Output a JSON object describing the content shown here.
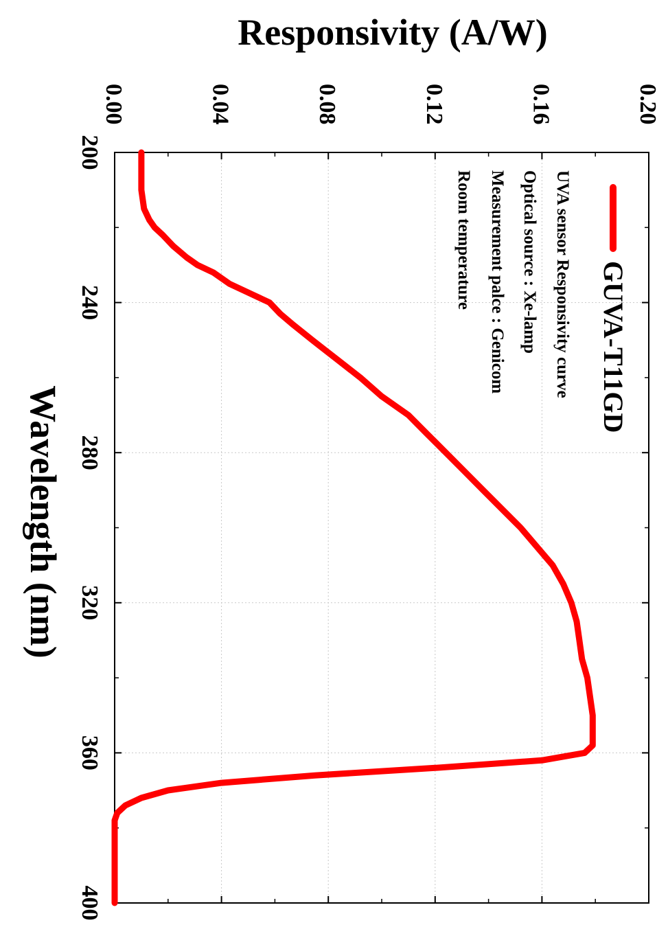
{
  "chart_data": {
    "type": "line",
    "xlabel": "Wavelength (nm)",
    "ylabel": "Responsivity (A/W)",
    "xlim": [
      200,
      400
    ],
    "ylim": [
      0.0,
      0.2
    ],
    "x_ticks": [
      "200",
      "240",
      "280",
      "320",
      "360",
      "400"
    ],
    "y_ticks": [
      "0.00",
      "0.04",
      "0.08",
      "0.12",
      "0.16",
      "0.20"
    ],
    "orientation": "rotated 90° clockwise",
    "grid": true,
    "legend_position": "top-right",
    "series": [
      {
        "name": "GUVA-T11GD",
        "color": "#ff0000",
        "x": [
          200,
          205,
          210,
          215,
          218,
          220,
          222,
          225,
          228,
          230,
          232,
          235,
          238,
          240,
          243,
          246,
          250,
          255,
          260,
          265,
          270,
          275,
          280,
          285,
          290,
          295,
          300,
          305,
          310,
          315,
          320,
          325,
          330,
          335,
          340,
          345,
          350,
          355,
          358,
          360,
          362,
          364,
          366,
          368,
          370,
          372,
          374,
          376,
          378,
          380,
          385,
          390,
          395,
          400
        ],
        "y": [
          0.01,
          0.01,
          0.01,
          0.011,
          0.013,
          0.015,
          0.018,
          0.022,
          0.027,
          0.031,
          0.037,
          0.043,
          0.052,
          0.058,
          0.062,
          0.067,
          0.074,
          0.083,
          0.092,
          0.1,
          0.11,
          0.117,
          0.124,
          0.131,
          0.138,
          0.145,
          0.152,
          0.158,
          0.164,
          0.168,
          0.171,
          0.173,
          0.174,
          0.175,
          0.177,
          0.178,
          0.179,
          0.179,
          0.179,
          0.176,
          0.16,
          0.12,
          0.075,
          0.04,
          0.02,
          0.01,
          0.004,
          0.001,
          0.0,
          0.0,
          0.0,
          0.0,
          0.0,
          0.0
        ]
      }
    ]
  },
  "legend": {
    "series_label": "GUVA-T11GD",
    "notes": [
      "UVA sensor Responsivity curve",
      "Optical source : Xe-lamp",
      "Measurement palce : Genicom",
      "Room temperature"
    ]
  }
}
